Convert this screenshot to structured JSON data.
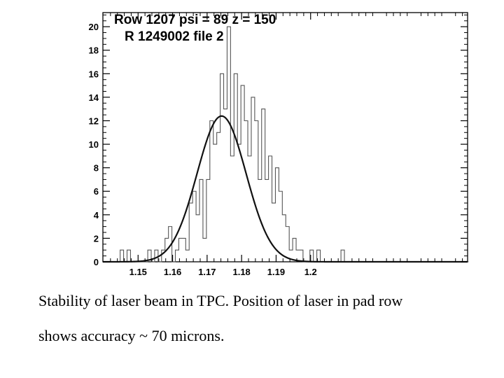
{
  "chart_data": {
    "type": "bar",
    "title": "",
    "xlabel": "",
    "ylabel": "",
    "stats_box": {
      "line1": "Row 1207 psi = 89 z = 150",
      "line2": "R 1249002 file 2"
    },
    "xlim": [
      1.1398,
      1.2455
    ],
    "ylim": [
      0,
      21.2
    ],
    "x_ticks": [
      1.15,
      1.16,
      1.17,
      1.18,
      1.19,
      1.2
    ],
    "y_ticks": [
      0,
      2,
      4,
      6,
      8,
      10,
      12,
      14,
      16,
      18,
      20
    ],
    "histogram": {
      "bin_start": 1.1398,
      "bin_width": 0.001,
      "counts": [
        0,
        0,
        0,
        0,
        0,
        1,
        0,
        1,
        0,
        0,
        0,
        0,
        0,
        1,
        0,
        1,
        0,
        1,
        2,
        3,
        0,
        1,
        2,
        2,
        1,
        5,
        6,
        4,
        7,
        2,
        7,
        12,
        10,
        11,
        16,
        13,
        20,
        9,
        16,
        10,
        15,
        12,
        9,
        14,
        12,
        7,
        13,
        7,
        9,
        5,
        8,
        6,
        4,
        3,
        1,
        2,
        1,
        1,
        0,
        0,
        1,
        0,
        1,
        0,
        0,
        0,
        0,
        0,
        0,
        1,
        0,
        0,
        0,
        0,
        0,
        0,
        0,
        0,
        0,
        0,
        0,
        0,
        0,
        0,
        0,
        0,
        0,
        0,
        0,
        0,
        0,
        0,
        0,
        0,
        0,
        0,
        0,
        0,
        0,
        0,
        0,
        0,
        0,
        0,
        0,
        0
      ],
      "stroke_color": "#555555"
    },
    "fit": {
      "type": "gaussian",
      "amplitude": 12.4,
      "mean": 1.1742,
      "sigma": 0.0071,
      "stroke_color": "#111111"
    },
    "grid": false,
    "legend": "none"
  },
  "caption": {
    "line1": "Stability of laser beam in TPC. Position of laser in pad row",
    "line2": "shows accuracy  ~ 70 microns."
  }
}
